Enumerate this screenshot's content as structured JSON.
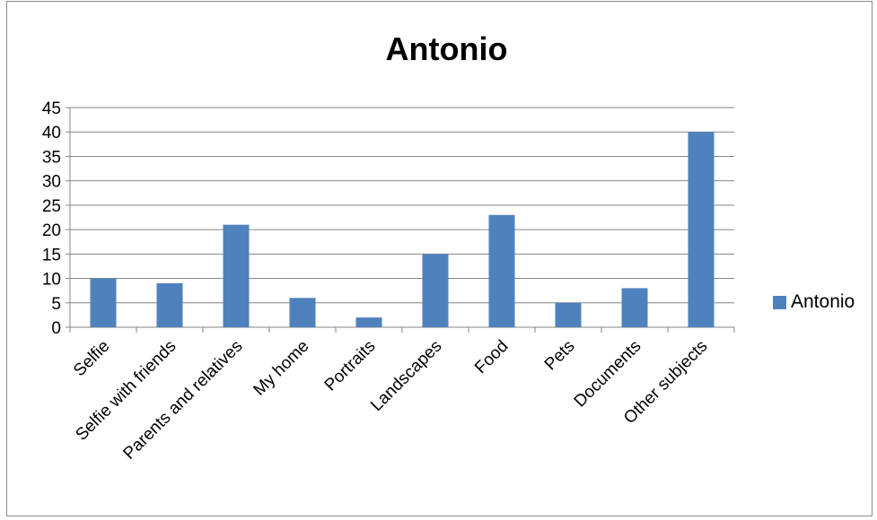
{
  "chart_data": {
    "type": "bar",
    "title": "Antonio",
    "xlabel": "",
    "ylabel": "",
    "categories": [
      "Selfie",
      "Selfie with friends",
      "Parents and relatives",
      "My home",
      "Portraits",
      "Landscapes",
      "Food",
      "Pets",
      "Documents",
      "Other subjects"
    ],
    "series": [
      {
        "name": "Antonio",
        "values": [
          10,
          9,
          21,
          6,
          2,
          15,
          23,
          5,
          8,
          40
        ],
        "color": "#4f81bd"
      }
    ],
    "ylim": [
      0,
      45
    ],
    "yticks": [
      0,
      5,
      10,
      15,
      20,
      25,
      30,
      35,
      40,
      45
    ],
    "grid": true,
    "legend_position": "right"
  }
}
